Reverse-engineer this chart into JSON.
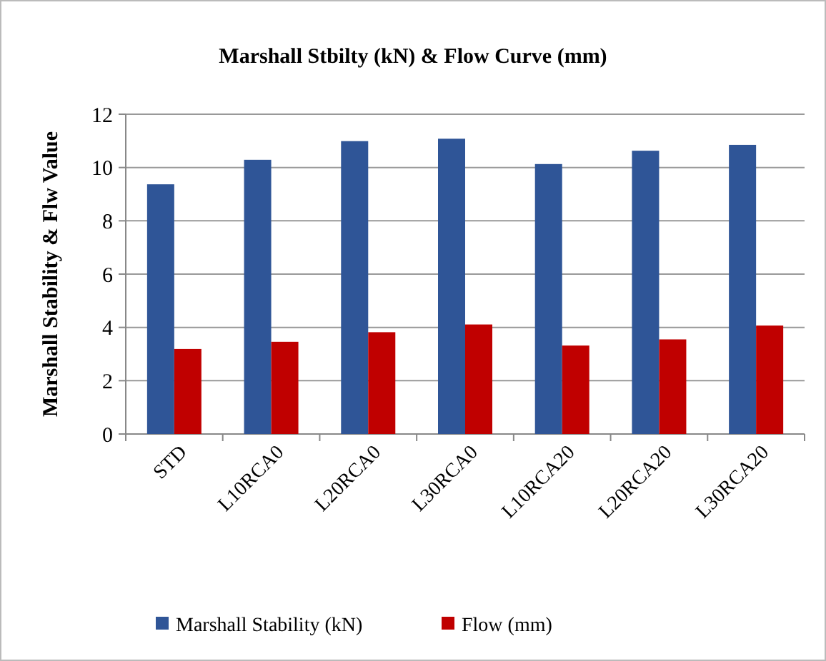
{
  "chart_data": {
    "type": "bar",
    "title": "Marshall Stbilty (kN) & Flow Curve (mm)",
    "ylabel": "Marshall Stability & Flw Value",
    "categories": [
      "STD",
      "L10RCA0",
      "L20RCA0",
      "L30RCA0",
      "L10RCA20",
      "L20RCA20",
      "L30RCA20"
    ],
    "series": [
      {
        "name": "Marshall Stability (kN)",
        "color": "#2f5597",
        "values": [
          9.37,
          10.29,
          10.99,
          11.08,
          10.13,
          10.63,
          10.85
        ]
      },
      {
        "name": "Flow (mm)",
        "color": "#c00000",
        "values": [
          3.19,
          3.46,
          3.82,
          4.11,
          3.32,
          3.55,
          4.07
        ]
      }
    ],
    "ylim": [
      0,
      12
    ],
    "yticks": [
      0,
      2,
      4,
      6,
      8,
      10,
      12
    ],
    "grid": "y",
    "legend": "bottom"
  }
}
